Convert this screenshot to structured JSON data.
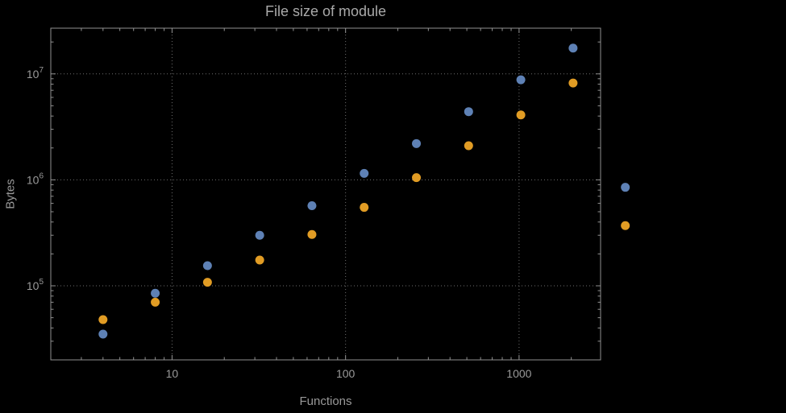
{
  "chart_data": {
    "type": "scatter",
    "title": "File size of module",
    "xlabel": "Functions",
    "ylabel": "Bytes",
    "x_scale": "log",
    "y_scale": "log",
    "grid": "dotted",
    "legend": "none",
    "x": [
      4,
      8,
      16,
      32,
      64,
      128,
      256,
      512,
      1024,
      2048,
      4096
    ],
    "series": [
      {
        "name": "series-blue",
        "color": "#5e81b5",
        "values": [
          35000,
          85000,
          155000,
          300000,
          570000,
          1150000,
          2200000,
          4400000,
          8800000,
          17500000,
          850000
        ]
      },
      {
        "name": "series-orange",
        "color": "#e19c24",
        "values": [
          48000,
          70000,
          108000,
          175000,
          305000,
          550000,
          1050000,
          2100000,
          4100000,
          8200000,
          370000
        ]
      }
    ],
    "x_ticks": [
      {
        "value": 10,
        "label": "10"
      },
      {
        "value": 100,
        "label": "100"
      },
      {
        "value": 1000,
        "label": "1000"
      }
    ],
    "y_ticks": [
      {
        "value": 100000,
        "base": "10",
        "exp": "5"
      },
      {
        "value": 1000000,
        "base": "10",
        "exp": "6"
      },
      {
        "value": 10000000,
        "base": "10",
        "exp": "7"
      }
    ],
    "x_range": [
      2,
      2950
    ],
    "y_range": [
      20000,
      27000000
    ],
    "point_radius": 5.5,
    "frame_color": "#919191",
    "grid_color": "#6e6e6e",
    "text_color": "#9a9a9a",
    "background": "#000000"
  }
}
